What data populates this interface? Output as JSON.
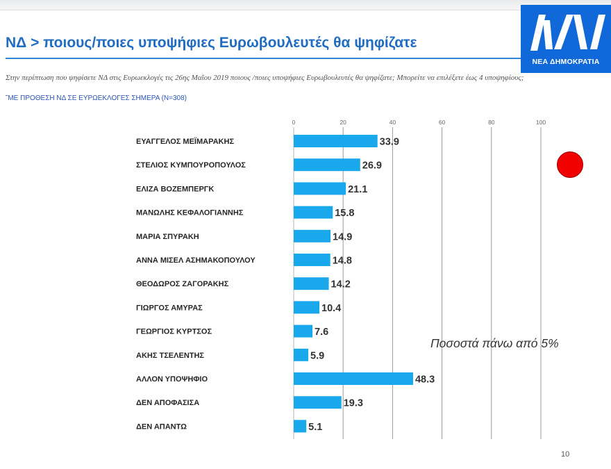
{
  "page": {
    "title": "ΝΔ > ποιους/ποιες υποψήφιες Ευρωβουλευτές θα ψηφίζατε",
    "subtitle": "Στην περίπτωση που ψηφίσετε ΝΔ στις Ευρωεκλογές τις 26ης Μαΐου 2019 ποιους /ποιες υποψήφιες Ευρωβουλευτές θα ψηφίζατε; Μπορείτε να επιλέξετε έως 4 υποψηφίους;",
    "base_note": "˜ΜΕ ΠΡΟΘΕΣΗ ΝΔ ΣΕ ΕΥΡΩΕΚΛΟΓΕΣ ΣΗΜΕΡΑ (N=308)",
    "note": "Ποσοστά πάνω από 5%",
    "page_number": "10"
  },
  "logo": {
    "text": "ΝΕΑ ΔΗΜΟΚΡΑΤΙΑ",
    "color": "#1169d9"
  },
  "colors": {
    "bar": "#1aa8ec",
    "title": "#1f6cc3",
    "dot": "#f00000"
  },
  "chart_data": {
    "type": "bar",
    "orientation": "horizontal",
    "categories": [
      "ΕΥΑΓΓΕΛΟΣ ΜΕΪΜΑΡΑΚΗΣ",
      "ΣΤΕΛΙΟΣ ΚΥΜΠΟΥΡΟΠΟΥΛΟΣ",
      "ΕΛΙΖΑ ΒΟΖΕΜΠΕΡΓΚ",
      "ΜΑΝΩΛΗΣ ΚΕΦΑΛΟΓΙΑΝΝΗΣ",
      "ΜΑΡΙΑ ΣΠΥΡΑΚΗ",
      "ΑΝΝΑ ΜΙΣΕΛ ΑΣΗΜΑΚΟΠΟΥΛΟΥ",
      "ΘΕΟΔΩΡΟΣ ΖΑΓΟΡΑΚΗΣ",
      "ΓΙΩΡΓΟΣ ΑΜΥΡΑΣ",
      "ΓΕΩΡΓΙΟΣ ΚΥΡΤΣΟΣ",
      "ΑΚΗΣ ΤΣΕΛΕΝΤΗΣ",
      "ΑΛΛΟΝ ΥΠΟΨΗΦΙΟ",
      "ΔΕΝ ΑΠΟΦΑΣΙΣΑ",
      "ΔΕΝ ΑΠΑΝΤΩ"
    ],
    "values": [
      33.9,
      26.9,
      21.1,
      15.8,
      14.9,
      14.8,
      14.2,
      10.4,
      7.6,
      5.9,
      48.3,
      19.3,
      5.1
    ],
    "value_labels": [
      "33.9",
      "26.9",
      "21.1",
      "15.8",
      "14.9",
      "14.8",
      "14.2",
      "10.4",
      "7.6",
      "5.9",
      "48.3",
      "19.3",
      "5.1"
    ],
    "xlim": [
      0,
      100
    ],
    "xticks": [
      0,
      20,
      40,
      60,
      80,
      100
    ],
    "grid": true,
    "legend": "none",
    "title": "",
    "xlabel": "",
    "ylabel": ""
  }
}
